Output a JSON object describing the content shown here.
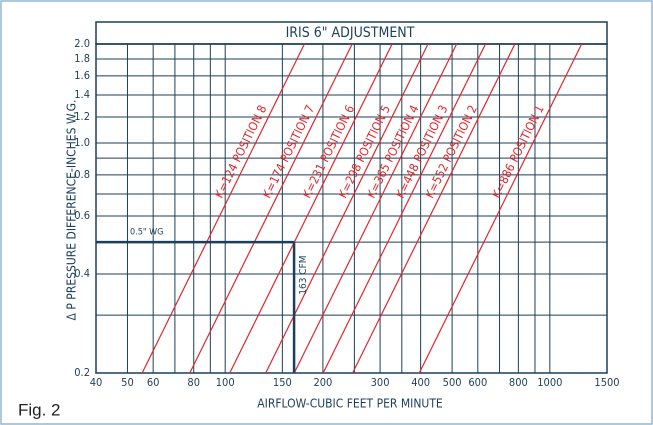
{
  "chart_data": {
    "type": "line",
    "title": "IRIS 6\" ADJUSTMENT",
    "xlabel": "AIRFLOW-CUBIC FEET PER MINUTE",
    "ylabel": "Δ P   PRESSURE DIFFERENCE-INCHES W.G.",
    "caption": "Fig. 2",
    "xscale": "log",
    "yscale": "log",
    "xlim": [
      40,
      1500
    ],
    "ylim": [
      0.2,
      2.0
    ],
    "xticks": [
      40,
      50,
      60,
      80,
      100,
      150,
      200,
      300,
      400,
      500,
      600,
      800,
      1000,
      1500
    ],
    "yticks": [
      0.2,
      0.4,
      0.6,
      0.8,
      {
        "value": 1,
        "label": "1.0"
      },
      1.2,
      1.4,
      1.6,
      1.8,
      {
        "value": 2,
        "label": "2.0"
      }
    ],
    "xgrid": [
      40,
      50,
      60,
      70,
      80,
      90,
      100,
      150,
      200,
      250,
      300,
      350,
      400,
      500,
      600,
      700,
      800,
      900,
      1000,
      1500
    ],
    "ygrid": [
      0.2,
      0.3,
      0.4,
      0.5,
      0.6,
      0.7,
      0.8,
      0.9,
      1,
      1.2,
      1.4,
      1.6,
      1.8,
      2
    ],
    "grid": true,
    "grid_color": "#1b3f5a",
    "series": [
      {
        "name": "K=124  POSITION 8",
        "color": "#e0262b",
        "x": [
          55.5,
          175.4
        ],
        "values": [
          0.2,
          2.0
        ]
      },
      {
        "name": "K=174  POSITION 7",
        "color": "#e0262b",
        "x": [
          77.8,
          246.1
        ],
        "values": [
          0.2,
          2.0
        ]
      },
      {
        "name": "K=231  POSITION 6",
        "color": "#e0262b",
        "x": [
          103.3,
          326.7
        ],
        "values": [
          0.2,
          2.0
        ]
      },
      {
        "name": "K=298  POSITION 5",
        "color": "#e0262b",
        "x": [
          133.3,
          421.4
        ],
        "values": [
          0.2,
          2.0
        ]
      },
      {
        "name": "K=365  POSITION 4",
        "color": "#e0262b",
        "x": [
          163.2,
          516.2
        ],
        "values": [
          0.2,
          2.0
        ]
      },
      {
        "name": "K=448  POSITION 3",
        "color": "#e0262b",
        "x": [
          200.4,
          633.6
        ],
        "values": [
          0.2,
          2.0
        ]
      },
      {
        "name": "K=552  POSITION 2",
        "color": "#e0262b",
        "x": [
          246.9,
          780.6
        ],
        "values": [
          0.2,
          2.0
        ]
      },
      {
        "name": "K=886  POSITION 1",
        "color": "#e0262b",
        "x": [
          396.2,
          1253.0
        ],
        "values": [
          0.2,
          2.0
        ]
      }
    ],
    "marker": {
      "x": 163,
      "y": 0.5,
      "xtext": "163 CFM",
      "ytext": "0.5\" WG"
    }
  }
}
